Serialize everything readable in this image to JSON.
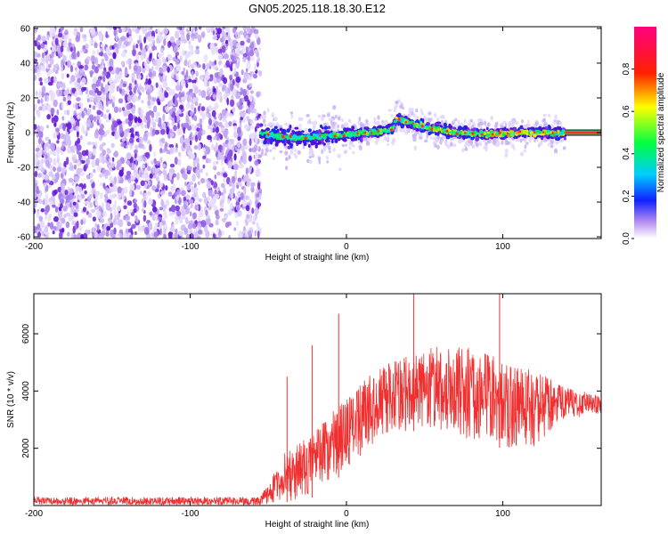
{
  "title": "GN05.2025.118.18.30.E12",
  "colors": {
    "snr_line": "#f03030",
    "frequency_dots": "#7a20e0",
    "peak_track": "#ff2a2a"
  },
  "chart_data": [
    {
      "type": "heatmap",
      "title": "GN05.2025.118.18.30.E12",
      "xlabel": "Height of straight line (km)",
      "ylabel": "Frequency (Hz)",
      "xlim": [
        -200,
        163
      ],
      "ylim": [
        -61,
        61
      ],
      "xticks": [
        -200,
        -100,
        0,
        100
      ],
      "yticks": [
        -60,
        -40,
        -20,
        0,
        20,
        40,
        60
      ],
      "noise_region_x": [
        -200,
        -55
      ],
      "signal_region_x": [
        -55,
        140
      ],
      "signal_frequency_track": [
        {
          "x": -55,
          "y": 0
        },
        {
          "x": -45,
          "y": -2
        },
        {
          "x": -30,
          "y": -3
        },
        {
          "x": -15,
          "y": -2
        },
        {
          "x": 0,
          "y": -1
        },
        {
          "x": 15,
          "y": 0
        },
        {
          "x": 30,
          "y": 2
        },
        {
          "x": 32,
          "y": 8
        },
        {
          "x": 50,
          "y": 3
        },
        {
          "x": 70,
          "y": 0
        },
        {
          "x": 90,
          "y": -1
        },
        {
          "x": 110,
          "y": 0
        },
        {
          "x": 140,
          "y": 0
        },
        {
          "x": 163,
          "y": 0
        }
      ],
      "colorbar": {
        "label": "Normalized spectral amplitude",
        "range": [
          0,
          1
        ],
        "ticks": [
          0.0,
          0.2,
          0.4,
          0.6,
          0.8
        ],
        "tick_labels": [
          "0.0",
          "0.2",
          "0.4",
          "0.6",
          "0.8"
        ]
      },
      "grid": false
    },
    {
      "type": "line",
      "xlabel": "Height of straight line (km)",
      "ylabel": "SNR (10 * v/v)",
      "xlim": [
        -200,
        163
      ],
      "ylim": [
        0,
        7400
      ],
      "xticks": [
        -200,
        -100,
        0,
        100
      ],
      "yticks": [
        2000,
        4000,
        6000
      ],
      "envelope": [
        {
          "x": -200,
          "low": 20,
          "high": 300
        },
        {
          "x": -55,
          "low": 20,
          "high": 300
        },
        {
          "x": -40,
          "low": 100,
          "high": 1800
        },
        {
          "x": -20,
          "low": 300,
          "high": 2600
        },
        {
          "x": 0,
          "low": 1200,
          "high": 3800
        },
        {
          "x": 20,
          "low": 2300,
          "high": 4800
        },
        {
          "x": 40,
          "low": 2600,
          "high": 5300
        },
        {
          "x": 60,
          "low": 2600,
          "high": 5600
        },
        {
          "x": 80,
          "low": 2200,
          "high": 5500
        },
        {
          "x": 100,
          "low": 2000,
          "high": 5100
        },
        {
          "x": 120,
          "low": 2000,
          "high": 4700
        },
        {
          "x": 140,
          "low": 3000,
          "high": 4200
        },
        {
          "x": 163,
          "low": 3200,
          "high": 3800
        }
      ],
      "spikes": [
        {
          "x": -38,
          "y": 4500
        },
        {
          "x": -22,
          "y": 5600
        },
        {
          "x": -5,
          "y": 6700
        },
        {
          "x": 43,
          "y": 7500
        },
        {
          "x": 98,
          "y": 7400
        }
      ],
      "grid": false
    }
  ]
}
